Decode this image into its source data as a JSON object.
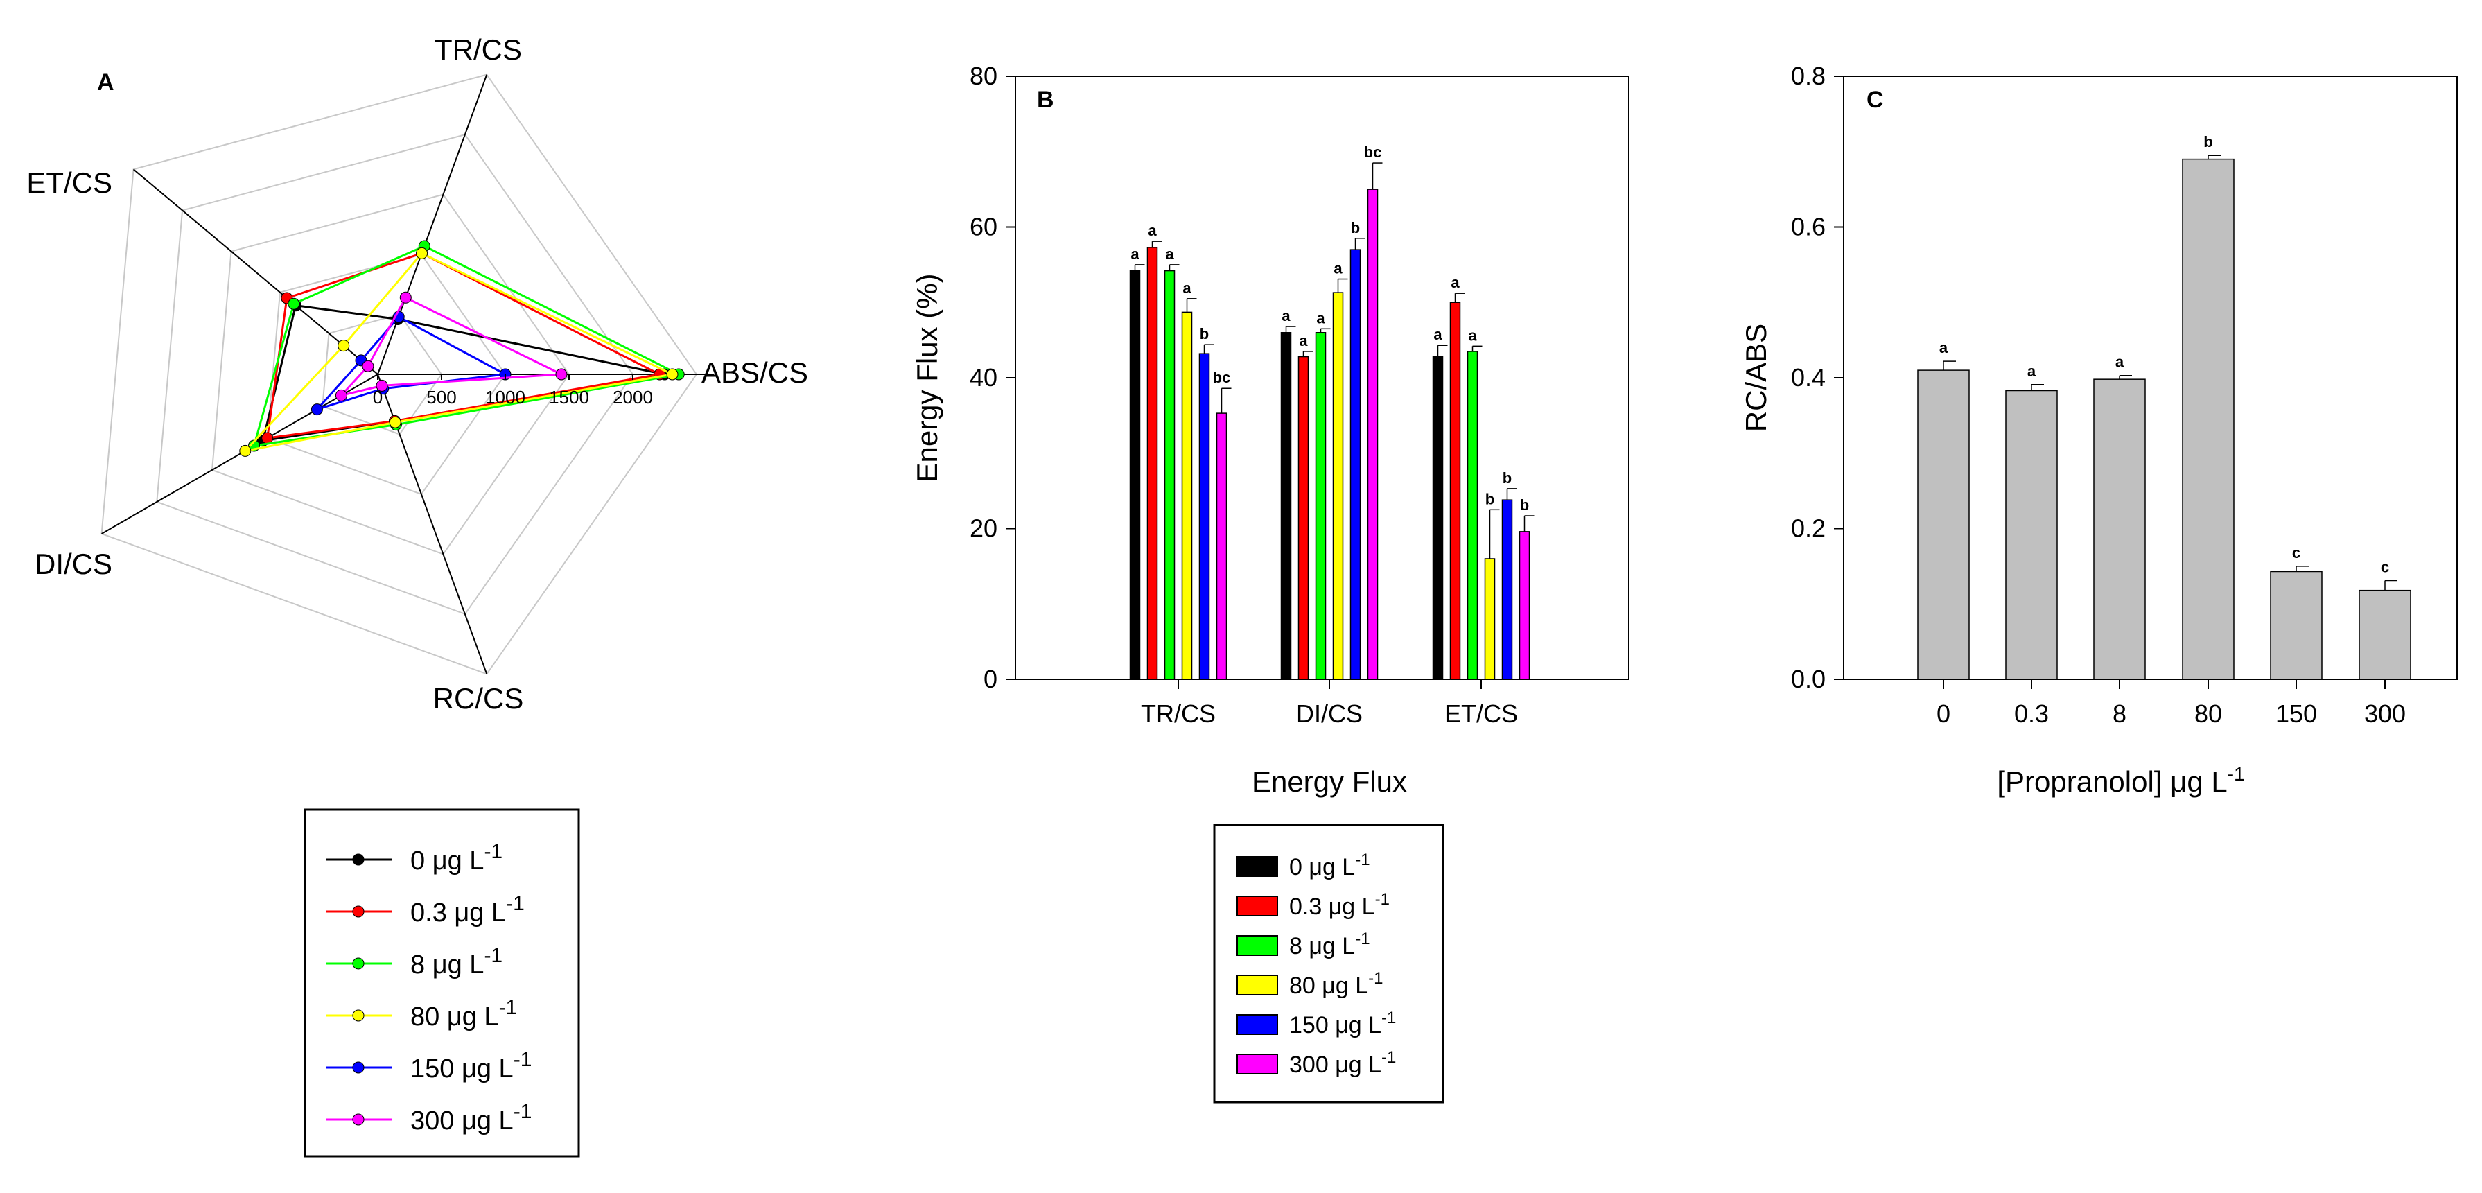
{
  "colors": {
    "c0": "#000000",
    "c03": "#ff0000",
    "c8": "#00ff00",
    "c80": "#ffff00",
    "c150": "#0000ff",
    "c300": "#ff00ff",
    "gray_bar": "#c0c0c0",
    "grid": "#c8c8c8"
  },
  "chart_data": [
    {
      "type": "radar",
      "panel_label": "A",
      "axes": [
        "TR/CS",
        "ABS/CS",
        "RC/CS",
        "DI/CS",
        "ET/CS"
      ],
      "radial_ticks": [
        "0",
        "500",
        "1000",
        "1500",
        "2000"
      ],
      "rmax": 2500,
      "series": [
        {
          "name": "0 µg L-1",
          "color": "#000000",
          "values": [
            460,
            2250,
            390,
            1040,
            840
          ]
        },
        {
          "name": "0.3 µg L-1",
          "color": "#ff0000",
          "values": [
            1010,
            2210,
            390,
            1000,
            930
          ]
        },
        {
          "name": "8 µg L-1",
          "color": "#00ff00",
          "values": [
            1070,
            2360,
            420,
            1120,
            860
          ]
        },
        {
          "name": "80 µg L-1",
          "color": "#ffff00",
          "values": [
            1010,
            2310,
            400,
            1200,
            350
          ]
        },
        {
          "name": "150 µg L-1",
          "color": "#0000ff",
          "values": [
            480,
            1000,
            120,
            550,
            170
          ]
        },
        {
          "name": "300 µg L-1",
          "color": "#ff00ff",
          "values": [
            640,
            1440,
            95,
            330,
            100
          ]
        }
      ],
      "legend": {
        "items": [
          {
            "value": "0",
            "unit": "μg L",
            "exp": "-1",
            "color": "#000000"
          },
          {
            "value": "0.3",
            "unit": "μg L",
            "exp": "-1",
            "color": "#ff0000"
          },
          {
            "value": "8",
            "unit": "μg L",
            "exp": "-1",
            "color": "#00ff00"
          },
          {
            "value": "80",
            "unit": "μg L",
            "exp": "-1",
            "color": "#ffff00"
          },
          {
            "value": "150",
            "unit": "μg L",
            "exp": "-1",
            "color": "#0000ff"
          },
          {
            "value": "300",
            "unit": "μg L",
            "exp": "-1",
            "color": "#ff00ff"
          }
        ]
      }
    },
    {
      "type": "bar",
      "panel_label": "B",
      "categories": [
        "TR/CS",
        "DI/CS",
        "ET/CS"
      ],
      "xlabel": "Energy Flux",
      "ylabel": "Energy Flux (%)",
      "ylim": [
        0,
        80
      ],
      "yticks": [
        "0",
        "20",
        "40",
        "60",
        "80"
      ],
      "series": [
        {
          "name": "0 µg L-1",
          "color": "#000000",
          "values": [
            54.2,
            46.0,
            42.8
          ],
          "errors": [
            0.8,
            0.8,
            1.5
          ],
          "sig": [
            "a",
            "a",
            "a"
          ]
        },
        {
          "name": "0.3 µg L-1",
          "color": "#ff0000",
          "values": [
            57.3,
            42.8,
            50.0
          ],
          "errors": [
            0.8,
            0.7,
            1.2
          ],
          "sig": [
            "a",
            "a",
            "a"
          ]
        },
        {
          "name": "8 µg L-1",
          "color": "#00ff00",
          "values": [
            54.2,
            46.0,
            43.5
          ],
          "errors": [
            0.8,
            0.5,
            0.7
          ],
          "sig": [
            "a",
            "a",
            "a"
          ]
        },
        {
          "name": "80 µg L-1",
          "color": "#ffff00",
          "values": [
            48.7,
            51.3,
            16.0
          ],
          "errors": [
            1.8,
            1.8,
            6.5
          ],
          "sig": [
            "a",
            "a",
            "b"
          ]
        },
        {
          "name": "150 µg L-1",
          "color": "#0000ff",
          "values": [
            43.2,
            57.0,
            23.8
          ],
          "errors": [
            1.2,
            1.5,
            1.5
          ],
          "sig": [
            "b",
            "b",
            "b"
          ]
        },
        {
          "name": "300 µg L-1",
          "color": "#ff00ff",
          "values": [
            35.3,
            65.0,
            19.6
          ],
          "errors": [
            3.3,
            3.5,
            2.1
          ],
          "sig": [
            "bc",
            "bc",
            "b"
          ]
        }
      ],
      "legend": {
        "items": [
          {
            "value": "0",
            "unit": "μg L",
            "exp": "-1",
            "color": "#000000"
          },
          {
            "value": "0.3",
            "unit": " μg L",
            "exp": "-1",
            "color": "#ff0000"
          },
          {
            "value": "8",
            "unit": "μg L",
            "exp": "-1",
            "color": "#00ff00"
          },
          {
            "value": "80",
            "unit": "μg L",
            "exp": "-1",
            "color": "#ffff00"
          },
          {
            "value": "150",
            "unit": " μg L",
            "exp": "-1",
            "color": "#0000ff"
          },
          {
            "value": "300",
            "unit": "μg L",
            "exp": "-1",
            "color": "#ff00ff"
          }
        ]
      }
    },
    {
      "type": "bar",
      "panel_label": "C",
      "categories": [
        "0",
        "0.3",
        "8",
        "80",
        "150",
        "300"
      ],
      "xlabel_main": "[Propranolol] μg L",
      "xlabel_exp": "-1",
      "ylabel": "RC/ABS",
      "ylim": [
        0,
        0.8
      ],
      "yticks": [
        "0.0",
        "0.2",
        "0.4",
        "0.6",
        "0.8"
      ],
      "values": [
        0.41,
        0.383,
        0.398,
        0.69,
        0.143,
        0.118
      ],
      "errors": [
        0.012,
        0.008,
        0.005,
        0.005,
        0.007,
        0.013
      ],
      "sig": [
        "a",
        "a",
        "a",
        "b",
        "c",
        "c"
      ],
      "color": "#c0c0c0"
    }
  ]
}
